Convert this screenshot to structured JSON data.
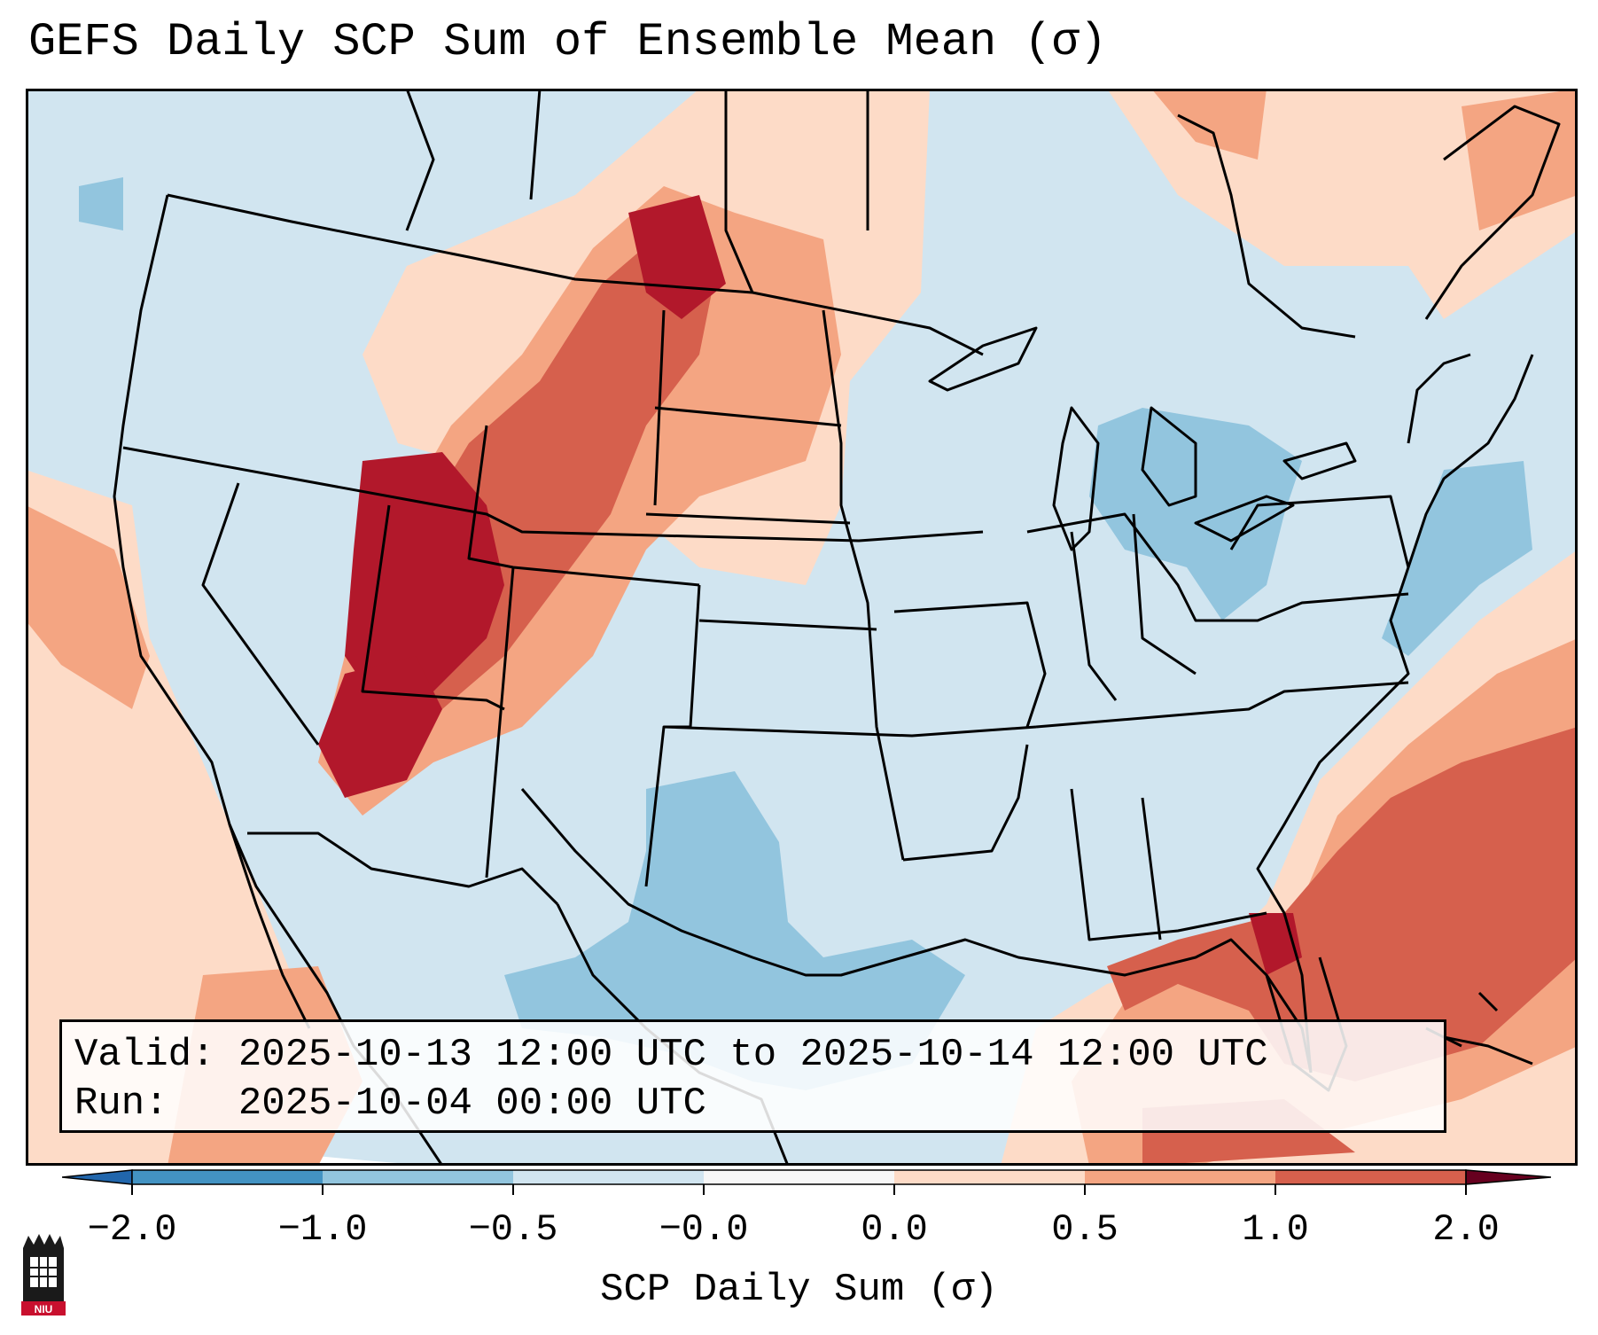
{
  "title": "GEFS Daily SCP Sum of Ensemble Mean (σ)",
  "info": {
    "valid_label": "Valid:",
    "valid_value": "2025-10-13 12:00 UTC to 2025-10-14 12:00 UTC",
    "run_label": "Run:",
    "run_value": "2025-10-04 00:00 UTC"
  },
  "colorbar": {
    "label": "SCP Daily Sum (σ)",
    "ticks": [
      "−2.0",
      "−1.0",
      "−0.5",
      "−0.0",
      "0.0",
      "0.5",
      "1.0",
      "2.0"
    ],
    "colors": [
      "#4393c3",
      "#92c5de",
      "#d1e5f0",
      "#f7f7f7",
      "#fddbc7",
      "#f4a582",
      "#d6604d",
      "#b2182b"
    ]
  },
  "logo_text": "NIU"
}
